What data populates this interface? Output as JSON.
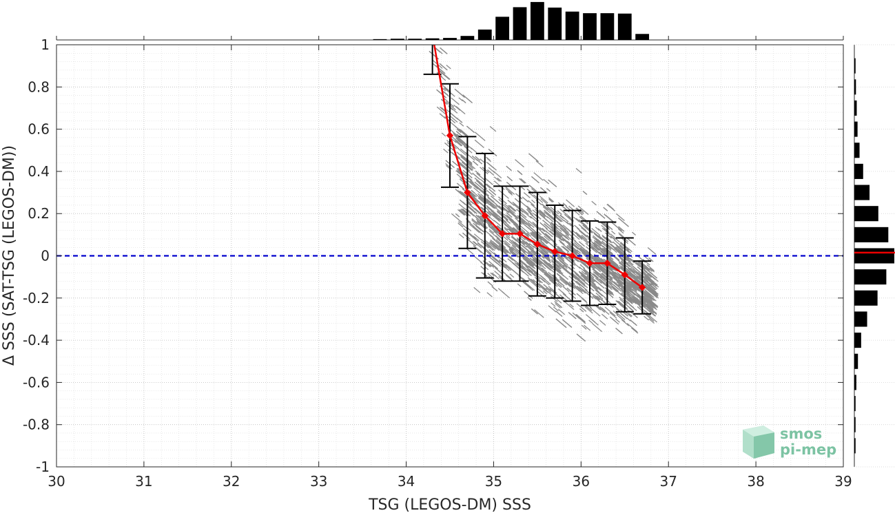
{
  "chart_data": {
    "type": "scatter",
    "xlabel": "TSG (LEGOS-DM) SSS",
    "ylabel": "Δ SSS (SAT-TSG (LEGOS-DM))",
    "xlim": [
      30,
      39
    ],
    "ylim": [
      -1,
      1
    ],
    "x_ticks": [
      30,
      31,
      32,
      33,
      34,
      35,
      36,
      37,
      38,
      39
    ],
    "y_ticks": [
      -1,
      -0.8,
      -0.6,
      -0.4,
      -0.2,
      0,
      0.2,
      0.4,
      0.6,
      0.8,
      1
    ],
    "grid": true,
    "reference_line": {
      "y": 0,
      "color": "#0000cc",
      "style": "dashed"
    },
    "scatter_color": "#808080",
    "mean_line_color": "#ee0000",
    "binned_stats": {
      "x": [
        34.3,
        34.5,
        34.7,
        34.9,
        35.1,
        35.3,
        35.5,
        35.7,
        35.9,
        36.1,
        36.3,
        36.5,
        36.7
      ],
      "mean": [
        1.05,
        0.57,
        0.3,
        0.19,
        0.105,
        0.105,
        0.055,
        0.02,
        0.0,
        -0.035,
        -0.035,
        -0.09,
        -0.15
      ],
      "std": [
        0.19,
        0.245,
        0.265,
        0.295,
        0.225,
        0.225,
        0.245,
        0.22,
        0.215,
        0.2,
        0.195,
        0.175,
        0.125
      ]
    },
    "x_histogram": {
      "bin_centers": [
        33.7,
        33.9,
        34.1,
        34.3,
        34.5,
        34.7,
        34.9,
        35.1,
        35.3,
        35.5,
        35.7,
        35.9,
        36.1,
        36.3,
        36.5,
        36.7
      ],
      "relative_counts": [
        0.02,
        0.03,
        0.03,
        0.04,
        0.05,
        0.1,
        0.26,
        0.58,
        0.82,
        0.95,
        0.81,
        0.71,
        0.67,
        0.67,
        0.66,
        0.15
      ]
    },
    "y_histogram": {
      "bin_centers": [
        0.9,
        0.8,
        0.7,
        0.6,
        0.5,
        0.4,
        0.3,
        0.2,
        0.1,
        0.0,
        -0.1,
        -0.2,
        -0.3,
        -0.4,
        -0.5,
        -0.6,
        -0.7,
        -0.8,
        -0.9
      ],
      "relative_counts": [
        0.03,
        0.04,
        0.06,
        0.08,
        0.13,
        0.22,
        0.38,
        0.6,
        0.85,
        1.0,
        0.8,
        0.58,
        0.32,
        0.17,
        0.09,
        0.05,
        0.03,
        0.03,
        0.03
      ],
      "mean_line_y": 0.015
    }
  },
  "logo": {
    "line1": "smos",
    "line2": "pi-mep"
  }
}
